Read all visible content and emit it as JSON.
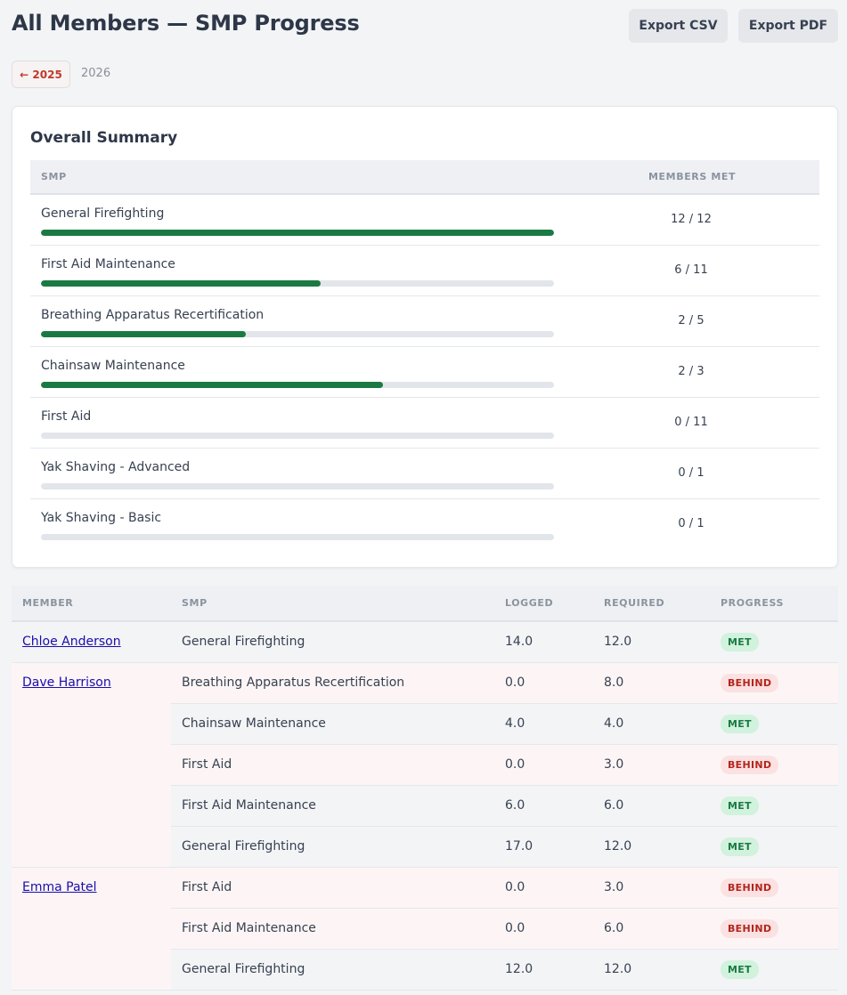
{
  "header": {
    "title": "All Members — SMP Progress",
    "export_csv": "Export CSV",
    "export_pdf": "Export PDF"
  },
  "year_nav": {
    "prev_label": "← 2025",
    "current": "2026"
  },
  "summary": {
    "title": "Overall Summary",
    "col_smp": "SMP",
    "col_members_met": "MEMBERS MET",
    "rows": [
      {
        "name": "General Firefighting",
        "met": 12,
        "total": 12,
        "label": "12 / 12"
      },
      {
        "name": "First Aid Maintenance",
        "met": 6,
        "total": 11,
        "label": "6 / 11"
      },
      {
        "name": "Breathing Apparatus Recertification",
        "met": 2,
        "total": 5,
        "label": "2 / 5"
      },
      {
        "name": "Chainsaw Maintenance",
        "met": 2,
        "total": 3,
        "label": "2 / 3"
      },
      {
        "name": "First Aid",
        "met": 0,
        "total": 11,
        "label": "0 / 11"
      },
      {
        "name": "Yak Shaving - Advanced",
        "met": 0,
        "total": 1,
        "label": "0 / 1"
      },
      {
        "name": "Yak Shaving - Basic",
        "met": 0,
        "total": 1,
        "label": "0 / 1"
      }
    ]
  },
  "members_table": {
    "columns": [
      "MEMBER",
      "SMP",
      "LOGGED",
      "REQUIRED",
      "PROGRESS"
    ],
    "members": [
      {
        "name": "Chloe Anderson",
        "rows": [
          {
            "smp": "General Firefighting",
            "logged": "14.0",
            "required": "12.0",
            "status": "MET"
          }
        ]
      },
      {
        "name": "Dave Harrison",
        "rows": [
          {
            "smp": "Breathing Apparatus Recertification",
            "logged": "0.0",
            "required": "8.0",
            "status": "BEHIND"
          },
          {
            "smp": "Chainsaw Maintenance",
            "logged": "4.0",
            "required": "4.0",
            "status": "MET"
          },
          {
            "smp": "First Aid",
            "logged": "0.0",
            "required": "3.0",
            "status": "BEHIND"
          },
          {
            "smp": "First Aid Maintenance",
            "logged": "6.0",
            "required": "6.0",
            "status": "MET"
          },
          {
            "smp": "General Firefighting",
            "logged": "17.0",
            "required": "12.0",
            "status": "MET"
          }
        ]
      },
      {
        "name": "Emma Patel",
        "rows": [
          {
            "smp": "First Aid",
            "logged": "0.0",
            "required": "3.0",
            "status": "BEHIND"
          },
          {
            "smp": "First Aid Maintenance",
            "logged": "0.0",
            "required": "6.0",
            "status": "BEHIND"
          },
          {
            "smp": "General Firefighting",
            "logged": "12.0",
            "required": "12.0",
            "status": "MET"
          }
        ]
      }
    ]
  },
  "colors": {
    "progress_fill": "#1b7a44",
    "met_badge_bg": "#d1f2dd",
    "behind_badge_bg": "#fbe1e1",
    "behind_text": "#b3261e"
  }
}
